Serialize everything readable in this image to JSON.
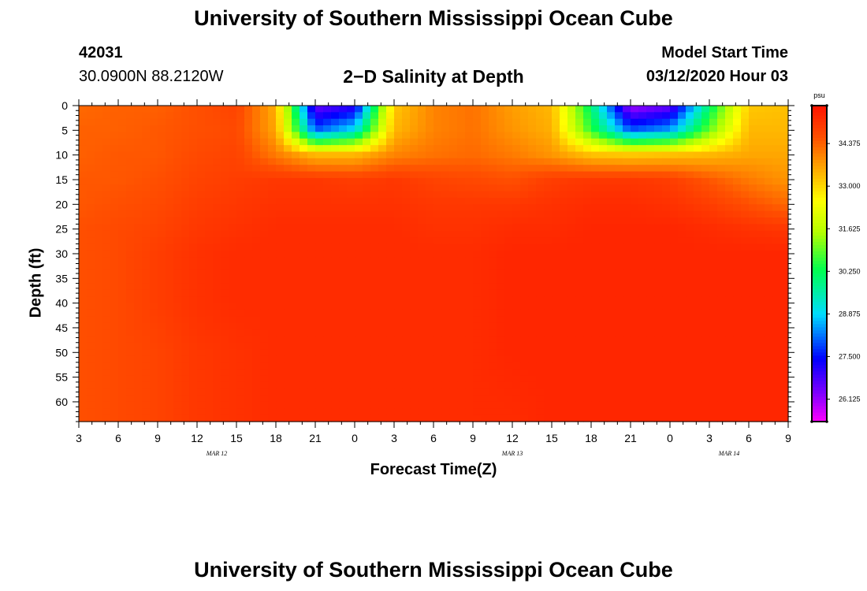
{
  "header": {
    "title": "University of Southern Mississippi Ocean Cube",
    "station_id": "42031",
    "coords": "30.0900N 88.2120W",
    "subtitle": "2−D Salinity at Depth",
    "model_label": "Model Start Time",
    "model_time": "03/12/2020 Hour 03"
  },
  "footer": {
    "title": "University of Southern Mississippi Ocean Cube"
  },
  "chart_data": {
    "type": "heatmap",
    "title": "2−D Salinity at Depth",
    "xlabel": "Forecast Time(Z)",
    "ylabel": "Depth (ft)",
    "colorbar_unit": "psu",
    "x_hours": [
      0,
      3,
      6,
      9,
      12,
      15,
      18,
      21,
      24,
      27,
      30,
      33,
      36,
      39,
      42,
      45,
      48,
      51,
      54
    ],
    "x_tick_labels": [
      "3",
      "6",
      "9",
      "12",
      "15",
      "18",
      "21",
      "0",
      "3",
      "6",
      "9",
      "12",
      "15",
      "18",
      "21",
      "0",
      "3",
      "6",
      "9"
    ],
    "date_labels": [
      {
        "label": "MAR 12",
        "hour": 10.5
      },
      {
        "label": "MAR 13",
        "hour": 33
      },
      {
        "label": "MAR 14",
        "hour": 49.5
      }
    ],
    "y_ticks": [
      0,
      5,
      10,
      15,
      20,
      25,
      30,
      35,
      40,
      45,
      50,
      55,
      60
    ],
    "ylim": [
      0,
      64
    ],
    "colorbar_ticks": [
      "34.375",
      "33.000",
      "31.625",
      "30.250",
      "28.875",
      "27.500",
      "26.125"
    ],
    "colorbar_range": [
      25.4,
      35.6
    ],
    "depths_ft": [
      0,
      5,
      10,
      15,
      20,
      25,
      30,
      40,
      50,
      64
    ],
    "salinity": [
      [
        34.3,
        34.4,
        34.4,
        34.6,
        34.8,
        33.5,
        26.5,
        27.0,
        33.2,
        34.0,
        34.2,
        33.7,
        33.4,
        30.0,
        26.0,
        26.5,
        30.0,
        33.2,
        33.3
      ],
      [
        34.4,
        34.4,
        34.5,
        34.6,
        34.7,
        33.6,
        28.0,
        29.0,
        33.4,
        34.0,
        34.2,
        33.8,
        33.5,
        30.6,
        28.0,
        28.5,
        31.0,
        33.4,
        33.4
      ],
      [
        34.4,
        34.5,
        34.5,
        34.7,
        34.8,
        34.1,
        33.4,
        33.4,
        34.0,
        34.2,
        34.3,
        34.1,
        33.8,
        33.3,
        33.2,
        33.3,
        33.4,
        33.6,
        33.6
      ],
      [
        34.5,
        34.5,
        34.6,
        34.8,
        34.9,
        35.0,
        35.0,
        34.9,
        35.0,
        34.8,
        34.7,
        34.6,
        34.9,
        35.0,
        35.0,
        34.9,
        34.5,
        34.1,
        33.8
      ],
      [
        34.5,
        34.6,
        34.7,
        34.9,
        35.0,
        35.1,
        35.1,
        35.1,
        35.1,
        35.0,
        35.0,
        35.0,
        35.1,
        35.2,
        35.2,
        35.1,
        34.9,
        34.6,
        34.3
      ],
      [
        34.6,
        34.7,
        34.8,
        35.0,
        35.1,
        35.2,
        35.2,
        35.2,
        35.2,
        35.1,
        35.1,
        35.2,
        35.2,
        35.3,
        35.3,
        35.3,
        35.2,
        35.1,
        35.0
      ],
      [
        34.6,
        34.7,
        34.9,
        35.1,
        35.2,
        35.2,
        35.2,
        35.2,
        35.2,
        35.2,
        35.2,
        35.3,
        35.3,
        35.3,
        35.3,
        35.3,
        35.3,
        35.3,
        35.3
      ],
      [
        34.6,
        34.7,
        34.9,
        35.1,
        35.2,
        35.2,
        35.2,
        35.2,
        35.2,
        35.2,
        35.2,
        35.3,
        35.3,
        35.3,
        35.3,
        35.3,
        35.3,
        35.3,
        35.3
      ],
      [
        34.6,
        34.7,
        34.8,
        35.0,
        35.1,
        35.2,
        35.2,
        35.2,
        35.2,
        35.2,
        35.2,
        35.3,
        35.3,
        35.3,
        35.3,
        35.3,
        35.3,
        35.3,
        35.3
      ],
      [
        34.6,
        34.7,
        34.8,
        35.0,
        35.1,
        35.2,
        35.2,
        35.2,
        35.2,
        35.2,
        35.2,
        35.2,
        35.3,
        35.3,
        35.3,
        35.3,
        35.3,
        35.3,
        35.3
      ]
    ]
  }
}
